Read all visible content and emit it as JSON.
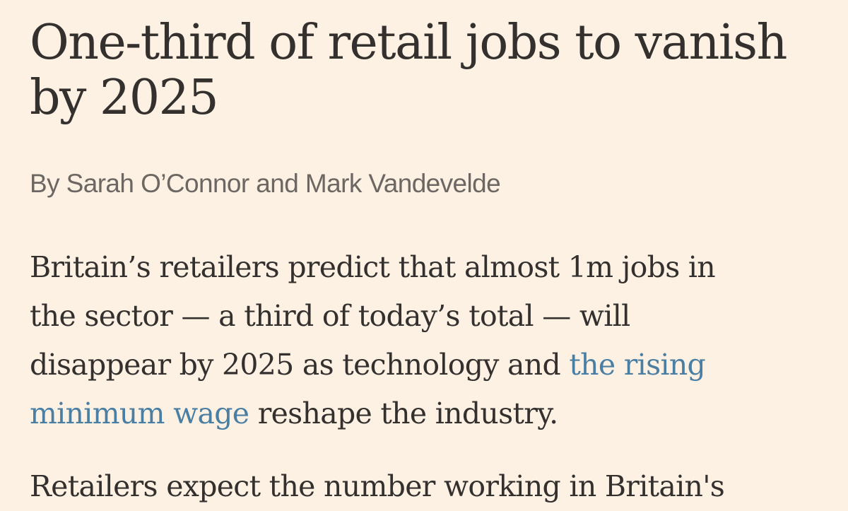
{
  "article": {
    "headline_line1": "One-third of retail jobs to vanish",
    "headline_line2": "by 2025",
    "byline": "By Sarah O’Connor and Mark Vandevelde",
    "lede": {
      "line1": "Britain’s retailers predict that almost 1m jobs in",
      "line2": "the sector — a third of today’s total — will",
      "line3_text": "disappear by 2025 as technology and ",
      "link_part1": "the rising",
      "link_part2": "minimum wage",
      "line4_text": " reshape the industry."
    },
    "next_paragraph_partial": "Retailers expect the number working in Britain's"
  },
  "colors": {
    "background": "#FDF1E4",
    "text": "#33302E",
    "byline": "#6C6762",
    "link": "#4A7FA3"
  }
}
